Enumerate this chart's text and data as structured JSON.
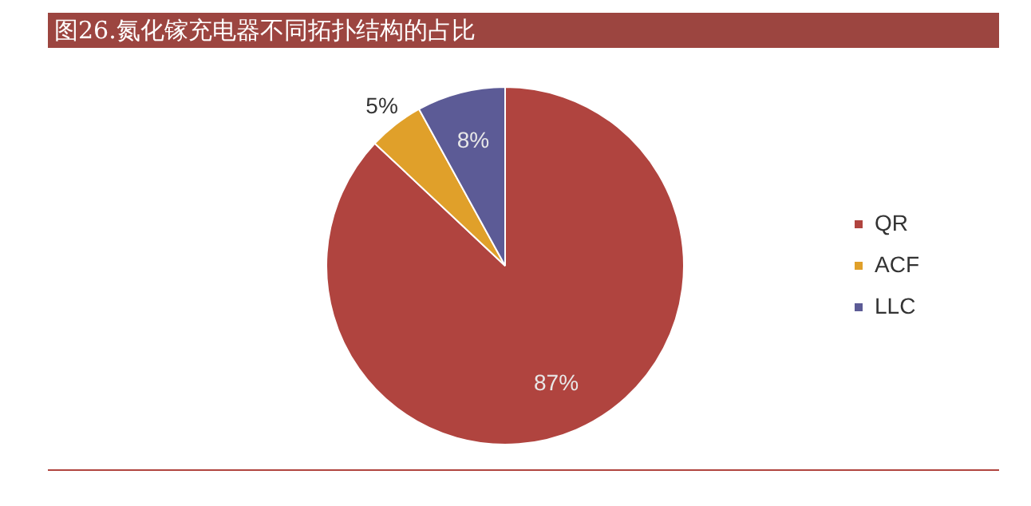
{
  "chart_data": {
    "type": "pie",
    "title": "图26.氮化镓充电器不同拓扑结构的占比",
    "categories": [
      "QR",
      "ACF",
      "LLC"
    ],
    "values": [
      87,
      5,
      8
    ],
    "value_labels": [
      "87%",
      "5%",
      "8%"
    ],
    "colors": [
      "#b0443f",
      "#e0a02a",
      "#5c5b96"
    ],
    "legend": "right"
  }
}
